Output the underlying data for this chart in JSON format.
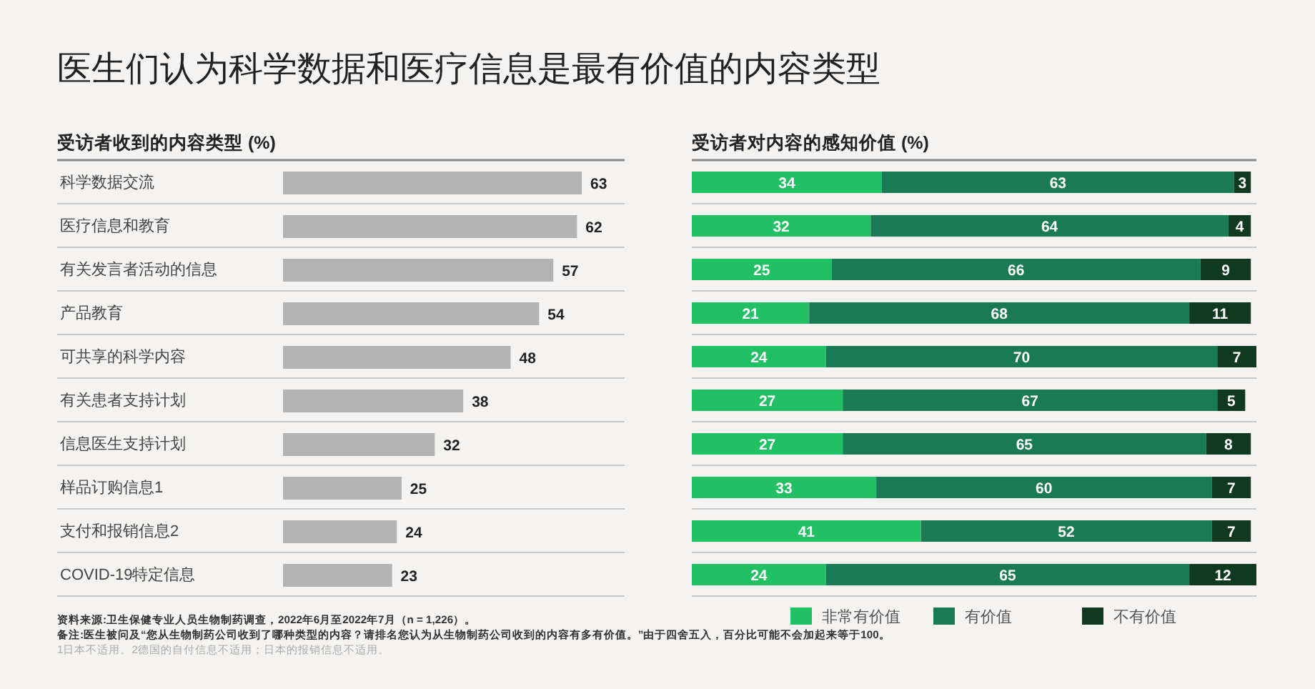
{
  "chart_data": [
    {
      "type": "bar",
      "orientation": "horizontal",
      "title": "医生们认为科学数据和医疗信息是最有价值的内容类型",
      "subtitle": "受访者收到的内容类型 (%)",
      "categories": [
        "科学数据交流",
        "医疗信息和教育",
        "有关发言者活动的信息",
        "产品教育",
        "可共享的科学内容",
        "有关患者支持计划",
        "信息医生支持计划",
        "样品订购信息1",
        "支付和报销信息2",
        "COVID-19特定信息"
      ],
      "values": [
        63,
        62,
        57,
        54,
        48,
        38,
        32,
        25,
        24,
        23
      ],
      "color": "#b3b3b3",
      "data_labels": true,
      "annotations": [
        "资料来源:卫生保健专业人员生物制药调查，2022年6月至2022年7月（n = 1,226）。",
        "备注:医生被问及“您从生物制药公司收到了哪种类型的内容？请排名您认为从生物制药公司收到的内容有多有价值。”由于四舍五入，百分比可能不会加起来等于100。",
        "1日本不适用。2德国的自付信息不适用；日本的报销信息不适用。"
      ]
    },
    {
      "type": "bar",
      "orientation": "horizontal",
      "stacked": true,
      "title": "受访者对内容的感知价值 (%)",
      "categories": [
        null,
        null,
        null,
        null,
        null,
        null,
        null,
        null,
        null,
        null
      ],
      "series": [
        {
          "name": "非常有价值",
          "color": "#22c065",
          "values": [
            34,
            32,
            25,
            21,
            24,
            27,
            27,
            33,
            41,
            24
          ]
        },
        {
          "name": "有价值",
          "color": "#1a7a56",
          "values": [
            63,
            64,
            66,
            68,
            70,
            67,
            65,
            60,
            52,
            65
          ]
        },
        {
          "name": "不有价值",
          "color": "#0f3a1f",
          "values": [
            3,
            4,
            9,
            11,
            7,
            5,
            8,
            7,
            7,
            12
          ]
        }
      ],
      "data_labels": true,
      "legend": "bottom"
    }
  ]
}
